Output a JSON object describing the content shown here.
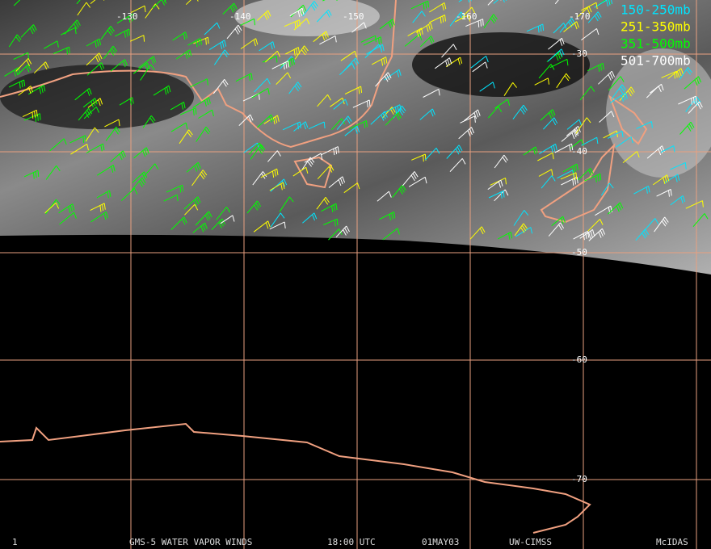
{
  "map": {
    "longitude_labels": [
      "-130",
      "-140",
      "-150",
      "-160",
      "-170"
    ],
    "latitude_labels": [
      "-30",
      "-40",
      "-50",
      "-60",
      "-70"
    ],
    "legend": [
      "150-250mb",
      "251-350mb",
      "351-500mb",
      "501-700mb"
    ],
    "footer": {
      "frame": "1",
      "product": "GMS-5 WATER VAPOR WINDS",
      "time": "18:00 UTC",
      "date": "01MAY03",
      "source": "UW-CIMSS",
      "system": "McIDAS"
    }
  }
}
